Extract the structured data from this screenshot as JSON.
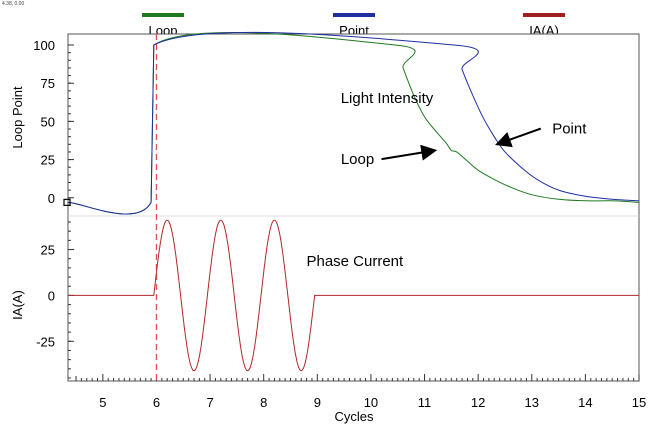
{
  "coord_readout": "4.38, 0.00",
  "chart_data": {
    "type": "line",
    "xlabel": "Cycles",
    "x_ticks": [
      "5",
      "6",
      "7",
      "8",
      "9",
      "10",
      "11",
      "12",
      "13",
      "14",
      "15"
    ],
    "xlim": [
      4.35,
      15
    ],
    "panels": [
      {
        "ylabel": "Loop Point",
        "y_ticks": [
          "100",
          "75",
          "50",
          "25",
          "0"
        ],
        "ylim": [
          -8,
          100
        ],
        "series": [
          {
            "name": "Loop",
            "color": "#1f7a1f",
            "x": [
              4.35,
              5.9,
              5.95,
              10.45,
              10.6,
              10.8,
              11.0,
              11.2,
              11.4,
              11.5,
              11.6,
              11.8,
              12.0,
              12.3,
              12.6,
              13.0,
              13.5,
              14.0,
              14.5,
              15.0
            ],
            "y": [
              -3,
              -3,
              100,
              100,
              85,
              67,
              53,
              44,
              36,
              31,
              30,
              24,
              18,
              12,
              7,
              2,
              -1,
              -2,
              -2,
              -3
            ]
          },
          {
            "name": "Point",
            "color": "#1f2f9f",
            "x": [
              4.35,
              5.9,
              5.95,
              11.55,
              11.7,
              11.9,
              12.1,
              12.3,
              12.5,
              12.8,
              13.1,
              13.5,
              14.0,
              14.5,
              15.0
            ],
            "y": [
              -3,
              -3,
              100,
              100,
              84,
              67,
              52,
              40,
              30,
              20,
              12,
              5,
              1,
              -1,
              -2
            ]
          }
        ],
        "annotations": [
          {
            "text": "Light Intensity",
            "x": 10.3,
            "y": 62
          },
          {
            "text": "Loop",
            "x": 9.75,
            "y": 22,
            "arrow_to": [
              11.2,
              31
            ]
          },
          {
            "text": "Point",
            "x": 13.7,
            "y": 42,
            "arrow_to": [
              12.35,
              35
            ]
          }
        ]
      },
      {
        "ylabel": "IA(A)",
        "y_ticks": [
          "25",
          "0",
          "-25"
        ],
        "ylim": [
          -45,
          40
        ],
        "series": [
          {
            "name": "IA(A)",
            "color": "#b02828",
            "period": 1.0,
            "amplitude": 41,
            "sine_start": 5.95,
            "sine_end": 8.95,
            "x_range": [
              4.35,
              15.0
            ]
          }
        ],
        "annotations": [
          {
            "text": "Phase Current",
            "x": 9.7,
            "y": 16
          }
        ]
      }
    ],
    "marker_line": {
      "x": 6.0,
      "color": "#e05050"
    },
    "legend": {
      "placement": "top",
      "items": [
        {
          "label": "Loop",
          "color": "#1f7a1f"
        },
        {
          "label": "Point",
          "color": "#1f2f9f"
        },
        {
          "label": "IA(A)",
          "color": "#a02020"
        }
      ]
    }
  }
}
